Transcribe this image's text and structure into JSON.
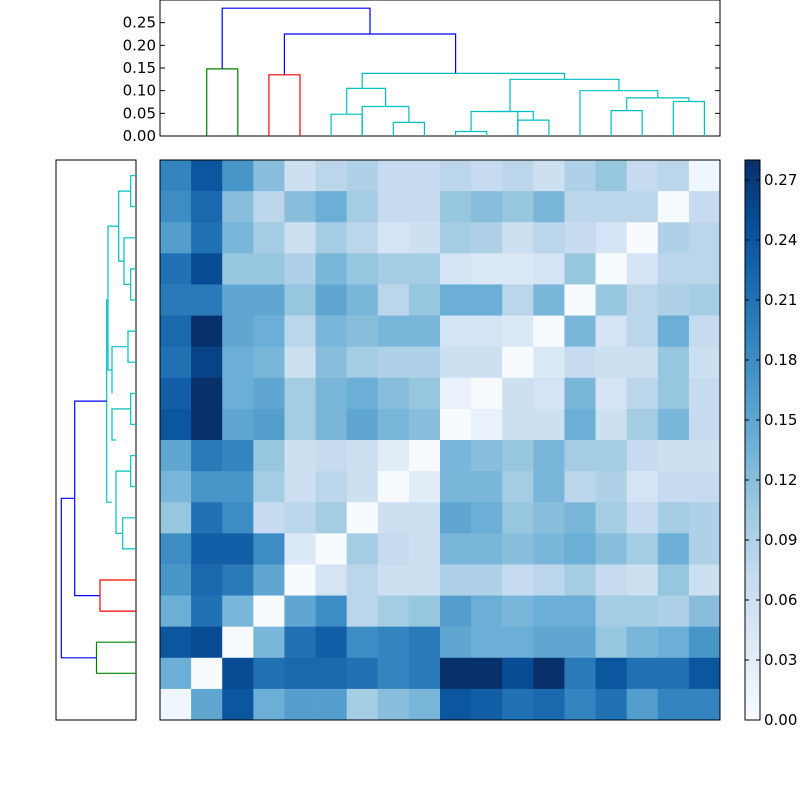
{
  "chart_data": [
    {
      "type": "dendrogram",
      "orientation": "top",
      "ylim": [
        0,
        0.3
      ],
      "yticks": [
        "0.00",
        "0.05",
        "0.10",
        "0.15",
        "0.20",
        "0.25"
      ],
      "links": [
        {
          "x": [
            2.0,
            2.0,
            3.0,
            3.0
          ],
          "y": [
            0,
            0.148,
            0.148,
            0
          ],
          "color": "#008000"
        },
        {
          "x": [
            4.0,
            4.0,
            5.0,
            5.0
          ],
          "y": [
            0,
            0.135,
            0.135,
            0
          ],
          "color": "#ff0000"
        },
        {
          "x": [
            6.0,
            6.0,
            7.0,
            7.0
          ],
          "y": [
            0,
            0.048,
            0.048,
            0
          ],
          "color": "#00bfbf"
        },
        {
          "x": [
            8.0,
            8.0,
            9.0,
            9.0
          ],
          "y": [
            0,
            0.03,
            0.03,
            0
          ],
          "color": "#00bfbf"
        },
        {
          "x": [
            7.0,
            7.0,
            8.5,
            8.5
          ],
          "y": [
            0,
            0.065,
            0.065,
            0.03
          ],
          "color": "#00bfbf"
        },
        {
          "x": [
            6.5,
            6.5,
            7.75,
            7.75
          ],
          "y": [
            0.048,
            0.105,
            0.105,
            0.065
          ],
          "color": "#00bfbf"
        },
        {
          "x": [
            10.0,
            10.0,
            11.0,
            11.0
          ],
          "y": [
            0,
            0.01,
            0.01,
            0
          ],
          "color": "#00bfbf"
        },
        {
          "x": [
            10.5,
            10.5,
            12.0,
            12.0
          ],
          "y": [
            0.01,
            0.054,
            0.054,
            0
          ],
          "color": "#00bfbf"
        },
        {
          "x": [
            12.0,
            12.0,
            13.0,
            13.0
          ],
          "y": [
            0,
            0.035,
            0.035,
            0
          ],
          "color": "#00bfbf"
        },
        {
          "x": [
            11.25,
            11.25,
            12.5,
            12.5
          ],
          "y": [
            0.054,
            0.054,
            0.054,
            0.035
          ],
          "color": "#00bfbf"
        },
        {
          "x": [
            15.0,
            15.0,
            16.0,
            16.0
          ],
          "y": [
            0,
            0.056,
            0.056,
            0
          ],
          "color": "#00bfbf"
        },
        {
          "x": [
            17.0,
            17.0,
            18.0,
            18.0
          ],
          "y": [
            0,
            0.076,
            0.076,
            0
          ],
          "color": "#00bfbf"
        },
        {
          "x": [
            15.5,
            15.5,
            17.5,
            17.5
          ],
          "y": [
            0.056,
            0.084,
            0.084,
            0.076
          ],
          "color": "#00bfbf"
        },
        {
          "x": [
            14.0,
            14.0,
            16.5,
            16.5
          ],
          "y": [
            0,
            0.1,
            0.1,
            0.084
          ],
          "color": "#00bfbf"
        },
        {
          "x": [
            11.75,
            11.75,
            15.25,
            15.25
          ],
          "y": [
            0.054,
            0.125,
            0.125,
            0.1
          ],
          "color": "#00bfbf"
        },
        {
          "x": [
            7.0,
            7.0,
            13.5,
            13.5
          ],
          "y": [
            0.105,
            0.138,
            0.138,
            0.125
          ],
          "color": "#00bfbf"
        },
        {
          "x": [
            4.5,
            4.5,
            10.0,
            10.0
          ],
          "y": [
            0.135,
            0.225,
            0.225,
            0.138
          ],
          "color": "#0000ff"
        },
        {
          "x": [
            2.5,
            2.5,
            7.25,
            7.25
          ],
          "y": [
            0.148,
            0.282,
            0.282,
            0.225
          ],
          "color": "#0000ff"
        }
      ]
    },
    {
      "type": "dendrogram",
      "orientation": "left",
      "xlim": [
        0,
        0.3
      ],
      "links": [
        {
          "x": [
            2.0,
            2.0,
            3.0,
            3.0
          ],
          "y": [
            0,
            0.148,
            0.148,
            0
          ],
          "color": "#008000"
        },
        {
          "x": [
            4.0,
            4.0,
            5.0,
            5.0
          ],
          "y": [
            0,
            0.135,
            0.135,
            0
          ],
          "color": "#ff0000"
        },
        {
          "x": [
            6.0,
            6.0,
            7.0,
            7.0
          ],
          "y": [
            0,
            0.05,
            0.05,
            0
          ],
          "color": "#00bfbf"
        },
        {
          "x": [
            8.0,
            8.0,
            9.0,
            9.0
          ],
          "y": [
            0,
            0.02,
            0.02,
            0
          ],
          "color": "#00bfbf"
        },
        {
          "x": [
            6.5,
            6.5,
            8.5,
            8.5
          ],
          "y": [
            0.05,
            0.075,
            0.075,
            0.02
          ],
          "color": "#00bfbf"
        },
        {
          "x": [
            10.0,
            10.0,
            11.0,
            11.0
          ],
          "y": [
            0,
            0.02,
            0.02,
            0
          ],
          "color": "#00bfbf"
        },
        {
          "x": [
            9.5,
            9.5,
            10.5,
            10.5
          ],
          "y": [
            0.075,
            0.09,
            0.09,
            0.02
          ],
          "color": "#00bfbf"
        },
        {
          "x": [
            12.0,
            12.0,
            13.0,
            13.0
          ],
          "y": [
            0,
            0.03,
            0.03,
            0
          ],
          "color": "#00bfbf"
        },
        {
          "x": [
            11.0,
            11.0,
            12.5,
            12.5
          ],
          "y": [
            0.09,
            0.09,
            0.09,
            0.03
          ],
          "color": "#00bfbf"
        },
        {
          "x": [
            14.0,
            14.0,
            15.0,
            15.0
          ],
          "y": [
            0,
            0.02,
            0.02,
            0
          ],
          "color": "#00bfbf"
        },
        {
          "x": [
            14.5,
            14.5,
            16.0,
            16.0
          ],
          "y": [
            0.02,
            0.045,
            0.045,
            0
          ],
          "color": "#00bfbf"
        },
        {
          "x": [
            17.0,
            17.0,
            18.0,
            18.0
          ],
          "y": [
            0,
            0.02,
            0.02,
            0
          ],
          "color": "#00bfbf"
        },
        {
          "x": [
            15.25,
            15.25,
            17.5,
            17.5
          ],
          "y": [
            0.045,
            0.065,
            0.065,
            0.02
          ],
          "color": "#00bfbf"
        },
        {
          "x": [
            11.75,
            11.75,
            16.375,
            16.375
          ],
          "y": [
            0.09,
            0.105,
            0.105,
            0.065
          ],
          "color": "#00bfbf"
        },
        {
          "x": [
            7.5,
            7.5,
            14.0,
            14.0
          ],
          "y": [
            0.09,
            0.11,
            0.11,
            0.105
          ],
          "color": "#00bfbf"
        },
        {
          "x": [
            4.5,
            4.5,
            10.75,
            10.75
          ],
          "y": [
            0.135,
            0.23,
            0.23,
            0.11
          ],
          "color": "#0000ff"
        },
        {
          "x": [
            2.5,
            2.5,
            7.625,
            7.625
          ],
          "y": [
            0.148,
            0.28,
            0.28,
            0.23
          ],
          "color": "#0000ff"
        }
      ]
    },
    {
      "type": "heatmap",
      "rows": 18,
      "cols": 18,
      "vmin": 0,
      "vmax": 0.28,
      "values": [
        [
          0.19,
          0.24,
          0.17,
          0.12,
          0.06,
          0.08,
          0.09,
          0.07,
          0.07,
          0.08,
          0.07,
          0.08,
          0.06,
          0.09,
          0.11,
          0.07,
          0.08,
          0.01
        ],
        [
          0.18,
          0.22,
          0.12,
          0.08,
          0.12,
          0.14,
          0.1,
          0.07,
          0.07,
          0.11,
          0.12,
          0.11,
          0.13,
          0.08,
          0.08,
          0.08,
          0.0,
          0.07
        ],
        [
          0.16,
          0.21,
          0.13,
          0.1,
          0.06,
          0.1,
          0.08,
          0.05,
          0.06,
          0.1,
          0.09,
          0.06,
          0.08,
          0.07,
          0.05,
          0.0,
          0.09,
          0.08
        ],
        [
          0.21,
          0.25,
          0.11,
          0.11,
          0.09,
          0.13,
          0.11,
          0.1,
          0.1,
          0.05,
          0.04,
          0.04,
          0.05,
          0.11,
          0.0,
          0.05,
          0.08,
          0.08
        ],
        [
          0.2,
          0.2,
          0.15,
          0.15,
          0.11,
          0.15,
          0.13,
          0.08,
          0.11,
          0.14,
          0.14,
          0.08,
          0.13,
          0.0,
          0.11,
          0.08,
          0.09,
          0.1
        ],
        [
          0.22,
          0.28,
          0.15,
          0.14,
          0.08,
          0.13,
          0.12,
          0.13,
          0.13,
          0.05,
          0.05,
          0.04,
          0.0,
          0.13,
          0.05,
          0.08,
          0.14,
          0.07
        ],
        [
          0.21,
          0.26,
          0.14,
          0.13,
          0.06,
          0.12,
          0.1,
          0.09,
          0.09,
          0.06,
          0.06,
          0.0,
          0.04,
          0.07,
          0.06,
          0.06,
          0.11,
          0.06
        ],
        [
          0.23,
          0.28,
          0.14,
          0.15,
          0.1,
          0.13,
          0.14,
          0.12,
          0.11,
          0.02,
          0.0,
          0.06,
          0.05,
          0.13,
          0.05,
          0.08,
          0.11,
          0.07
        ],
        [
          0.24,
          0.28,
          0.15,
          0.16,
          0.1,
          0.13,
          0.15,
          0.13,
          0.12,
          0.0,
          0.02,
          0.06,
          0.06,
          0.14,
          0.06,
          0.1,
          0.13,
          0.07
        ],
        [
          0.15,
          0.2,
          0.19,
          0.11,
          0.06,
          0.07,
          0.06,
          0.03,
          0.0,
          0.13,
          0.12,
          0.11,
          0.13,
          0.1,
          0.1,
          0.07,
          0.06,
          0.06
        ],
        [
          0.13,
          0.17,
          0.17,
          0.1,
          0.06,
          0.08,
          0.06,
          0.0,
          0.03,
          0.13,
          0.13,
          0.1,
          0.13,
          0.08,
          0.09,
          0.05,
          0.07,
          0.07
        ],
        [
          0.11,
          0.21,
          0.18,
          0.07,
          0.08,
          0.1,
          0.0,
          0.06,
          0.06,
          0.15,
          0.14,
          0.11,
          0.12,
          0.13,
          0.1,
          0.07,
          0.1,
          0.09
        ],
        [
          0.18,
          0.23,
          0.23,
          0.18,
          0.04,
          0.0,
          0.1,
          0.07,
          0.06,
          0.13,
          0.13,
          0.12,
          0.13,
          0.14,
          0.12,
          0.1,
          0.14,
          0.09
        ],
        [
          0.17,
          0.22,
          0.2,
          0.15,
          0.0,
          0.05,
          0.08,
          0.06,
          0.06,
          0.09,
          0.09,
          0.07,
          0.08,
          0.1,
          0.07,
          0.06,
          0.11,
          0.06
        ],
        [
          0.14,
          0.21,
          0.13,
          0.0,
          0.15,
          0.18,
          0.08,
          0.1,
          0.11,
          0.16,
          0.14,
          0.13,
          0.14,
          0.14,
          0.1,
          0.1,
          0.09,
          0.12
        ],
        [
          0.24,
          0.25,
          0.0,
          0.13,
          0.21,
          0.23,
          0.18,
          0.19,
          0.2,
          0.15,
          0.14,
          0.14,
          0.15,
          0.15,
          0.11,
          0.13,
          0.14,
          0.17
        ],
        [
          0.14,
          0.0,
          0.25,
          0.21,
          0.22,
          0.22,
          0.21,
          0.19,
          0.2,
          0.28,
          0.28,
          0.25,
          0.28,
          0.2,
          0.24,
          0.21,
          0.21,
          0.24
        ],
        [
          0.01,
          0.15,
          0.24,
          0.14,
          0.16,
          0.16,
          0.1,
          0.12,
          0.13,
          0.24,
          0.23,
          0.21,
          0.22,
          0.19,
          0.21,
          0.16,
          0.19,
          0.19
        ]
      ]
    },
    {
      "type": "colorbar",
      "vmin": 0,
      "vmax": 0.28,
      "ticks": [
        "0.00",
        "0.03",
        "0.06",
        "0.09",
        "0.12",
        "0.15",
        "0.18",
        "0.21",
        "0.24",
        "0.27"
      ]
    }
  ]
}
